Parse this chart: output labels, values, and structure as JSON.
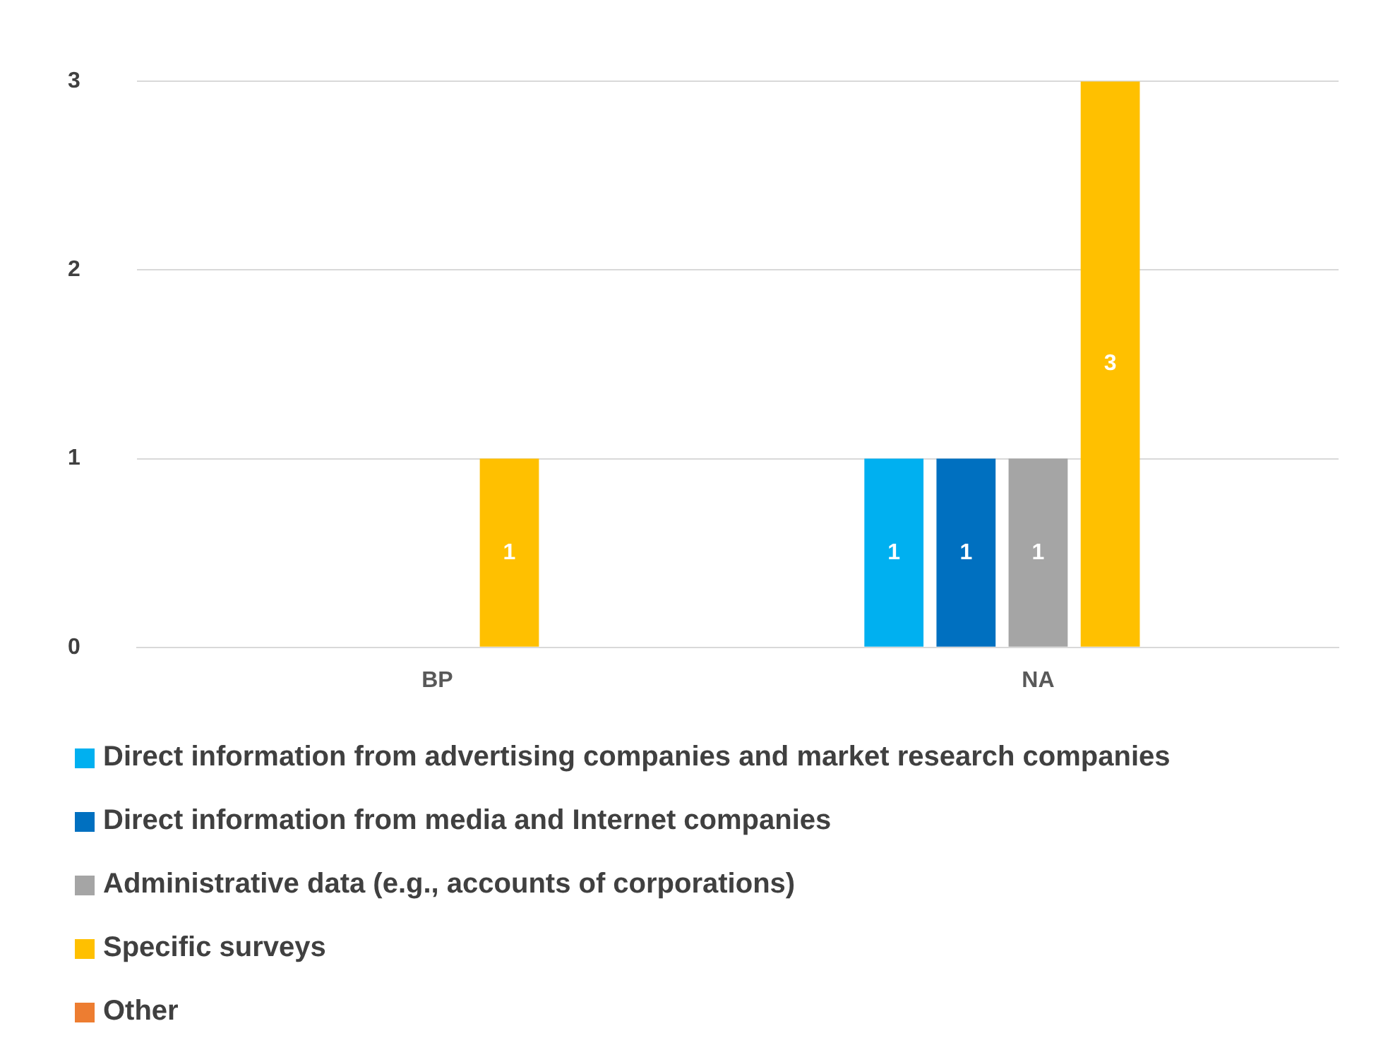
{
  "chart_data": {
    "type": "bar",
    "categories": [
      "BP",
      "NA"
    ],
    "series": [
      {
        "name": "Direct information from advertising companies and market research companies",
        "color": "#00b0f0",
        "values": [
          null,
          1
        ]
      },
      {
        "name": "Direct information from media and Internet companies",
        "color": "#0070c0",
        "values": [
          null,
          1
        ]
      },
      {
        "name": "Administrative data (e.g., accounts of corporations)",
        "color": "#a5a5a5",
        "values": [
          null,
          1
        ]
      },
      {
        "name": "Specific surveys",
        "color": "#ffc000",
        "values": [
          1,
          3
        ]
      },
      {
        "name": "Other",
        "color": "#ed7d31",
        "values": [
          null,
          null
        ]
      }
    ],
    "ylim": [
      0,
      3
    ],
    "yticks": [
      0,
      1,
      2,
      3
    ],
    "grid": "y",
    "legend": "bottom",
    "data_labels": true
  }
}
